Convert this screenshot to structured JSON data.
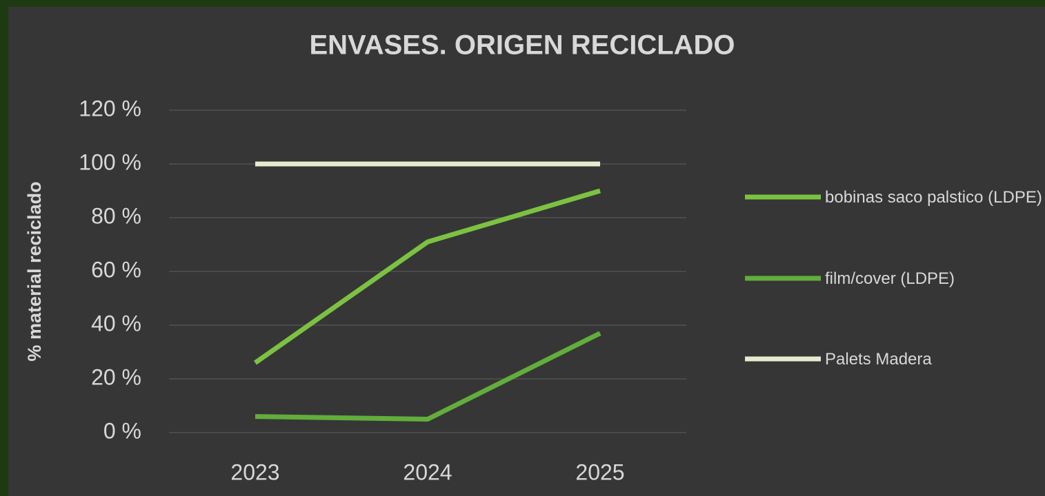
{
  "chart_data": {
    "type": "line",
    "title": "ENVASES. ORIGEN RECICLADO",
    "ylabel": "% material reciclado",
    "categories": [
      "2023",
      "2024",
      "2025"
    ],
    "series": [
      {
        "name": "bobinas saco palstico (LDPE)",
        "color": "#7cc242",
        "values": [
          26,
          71,
          90
        ]
      },
      {
        "name": "film/cover (LDPE)",
        "color": "#62ad3c",
        "values": [
          6,
          5,
          37
        ]
      },
      {
        "name": "Palets Madera",
        "color": "#e4ebcf",
        "values": [
          100,
          100,
          100
        ]
      }
    ],
    "ylim": [
      0,
      120
    ],
    "yticks": [
      {
        "value": 0,
        "label": "0 %"
      },
      {
        "value": 20,
        "label": "20 %"
      },
      {
        "value": 40,
        "label": "40 %"
      },
      {
        "value": 60,
        "label": "60 %"
      },
      {
        "value": 80,
        "label": "80 %"
      },
      {
        "value": 100,
        "label": "100 %"
      },
      {
        "value": 120,
        "label": "120 %"
      }
    ],
    "grid": true,
    "legend": "right"
  }
}
